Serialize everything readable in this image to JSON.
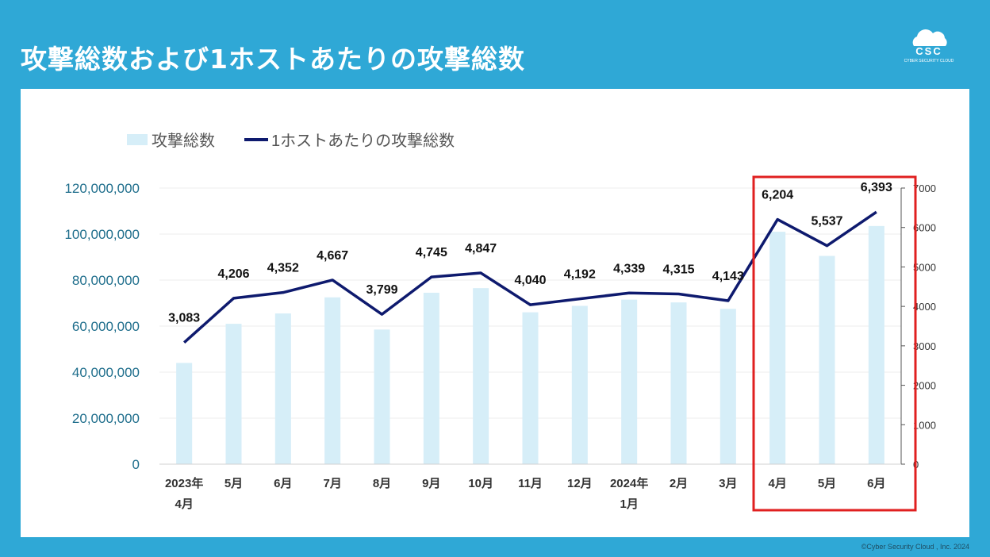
{
  "header": {
    "title": "攻撃総数および1ホストあたりの攻撃総数"
  },
  "logo": {
    "text": "CSC",
    "subtext": "CYBER SECURITY CLOUD",
    "icon": "cloud-icon"
  },
  "footer": {
    "copyright": "©Cyber Security Cloud , Inc. 2024"
  },
  "colors": {
    "background": "#2fa8d6",
    "bar": "#d6eef8",
    "line": "#0e1a6e",
    "highlight": "#e02020",
    "left_axis_text": "#1f6e8c"
  },
  "chart_data": {
    "type": "bar+line",
    "categories": [
      [
        "2023年",
        "4月"
      ],
      [
        "5月"
      ],
      [
        "6月"
      ],
      [
        "7月"
      ],
      [
        "8月"
      ],
      [
        "9月"
      ],
      [
        "10月"
      ],
      [
        "11月"
      ],
      [
        "12月"
      ],
      [
        "2024年",
        "1月"
      ],
      [
        "2月"
      ],
      [
        "3月"
      ],
      [
        "4月"
      ],
      [
        "5月"
      ],
      [
        "6月"
      ]
    ],
    "legend": {
      "position": "top-left"
    },
    "series": [
      {
        "name": "攻撃総数",
        "type": "bar",
        "axis": "left",
        "values": [
          44000000,
          61000000,
          65500000,
          72500000,
          58500000,
          74500000,
          76500000,
          66000000,
          68800000,
          71500000,
          70300000,
          67500000,
          101000000,
          90500000,
          103500000
        ]
      },
      {
        "name": "1ホストあたりの攻撃総数",
        "type": "line",
        "axis": "right",
        "values": [
          3083,
          4206,
          4352,
          4667,
          3799,
          4745,
          4847,
          4040,
          4192,
          4339,
          4315,
          4143,
          6204,
          5537,
          6393
        ],
        "labels": [
          "3,083",
          "4,206",
          "4,352",
          "4,667",
          "3,799",
          "4,745",
          "4,847",
          "4,040",
          "4,192",
          "4,339",
          "4,315",
          "4,143",
          "6,204",
          "5,537",
          "6,393"
        ]
      }
    ],
    "y_left": {
      "min": 0,
      "max": 120000000,
      "ticks": [
        0,
        20000000,
        40000000,
        60000000,
        80000000,
        100000000,
        120000000
      ],
      "tick_labels": [
        "0",
        "20,000,000",
        "40,000,000",
        "60,000,000",
        "80,000,000",
        "100,000,000",
        "120,000,000"
      ]
    },
    "y_right": {
      "min": 0,
      "max": 7000,
      "ticks": [
        0,
        1000,
        2000,
        3000,
        4000,
        5000,
        6000,
        7000
      ],
      "tick_labels": [
        "0",
        "1000",
        "2000",
        "3000",
        "4000",
        "5000",
        "6000",
        "7000"
      ]
    },
    "highlight": {
      "from_index": 12,
      "to_index": 14
    }
  }
}
